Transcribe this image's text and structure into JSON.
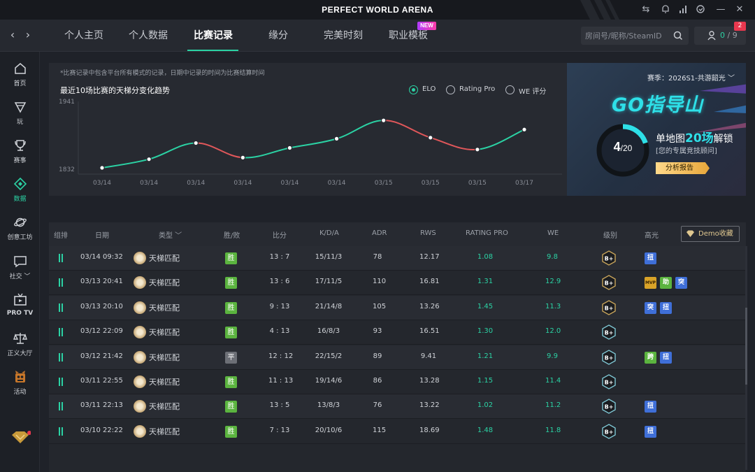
{
  "app": {
    "title": "PERFECT WORLD ARENA",
    "accent": "#2bd2a4"
  },
  "topnav": {
    "tabs": [
      {
        "label": "个人主页",
        "active": false
      },
      {
        "label": "个人数据",
        "active": false
      },
      {
        "label": "比赛记录",
        "active": true
      },
      {
        "label": "缘分",
        "active": false
      },
      {
        "label": "完美时刻",
        "active": false
      },
      {
        "label": "职业模板",
        "active": false
      }
    ],
    "new_badge": "NEW",
    "search_placeholder": "房间号/昵称/SteamID",
    "friends_online": "0",
    "friends_sep": " / ",
    "friends_total": "9",
    "friend_requests": "2"
  },
  "sidebar": {
    "items": [
      {
        "label": "首页",
        "icon": "home-icon"
      },
      {
        "label": "玩",
        "icon": "play-icon"
      },
      {
        "label": "赛事",
        "icon": "trophy-icon"
      },
      {
        "label": "数据",
        "icon": "data-icon",
        "active": true
      },
      {
        "label": "创意工坊",
        "icon": "planet-icon"
      },
      {
        "label": "社交 ﹀",
        "icon": "chat-icon"
      },
      {
        "label": "PRO TV",
        "icon": "tv-icon"
      },
      {
        "label": "正义大厅",
        "icon": "scales-icon"
      },
      {
        "label": "活动",
        "icon": "event-icon"
      }
    ]
  },
  "chart_panel": {
    "note": "*比赛记录中包含平台所有模式的记录，日期中记录的时间为比赛结算时间",
    "title": "最近10场比赛的天梯分变化趋势",
    "options": [
      {
        "label": "ELO",
        "selected": true
      },
      {
        "label": "Rating Pro",
        "selected": false
      },
      {
        "label": "WE 评分",
        "selected": false
      }
    ]
  },
  "chart_data": {
    "type": "line",
    "title": "最近10场比赛的天梯分变化趋势",
    "x": [
      "03/14",
      "03/14",
      "03/14",
      "03/14",
      "03/14",
      "03/14",
      "03/15",
      "03/15",
      "03/15",
      "03/17"
    ],
    "y_tick_labels": [
      "1941",
      "1832"
    ],
    "ylim": [
      1832,
      1941
    ],
    "series": [
      {
        "name": "ELO",
        "values": [
          1832,
          1848,
          1878,
          1851,
          1869,
          1886,
          1920,
          1888,
          1866,
          1903
        ]
      }
    ],
    "colors": {
      "up": "#2bd2a4",
      "down": "#e0575a"
    },
    "grid": false
  },
  "promo": {
    "season": "赛季：2026S1-共游韶光 ﹀",
    "logo_text": "GO指导山",
    "progress_done": "4",
    "progress_total": "/20",
    "progress_fraction": 0.2,
    "line1_prefix": "单地图",
    "line1_highlight": "20场",
    "line1_suffix": "解锁",
    "line2": "[您的专属竞技顾问]",
    "button": "分析报告"
  },
  "table": {
    "headers": {
      "group": "组排",
      "date": "日期",
      "type": "类型 ﹀",
      "result": "胜/败",
      "score": "比分",
      "kda": "K/D/A",
      "adr": "ADR",
      "rws": "RWS",
      "rating": "RATING PRO",
      "we": "WE",
      "rank": "级别",
      "highlight": "高光"
    },
    "demo_button": "Demo收藏",
    "rows": [
      {
        "date": "03/14 09:32",
        "type": "天梯匹配",
        "result": "胜",
        "score": "13 : 7",
        "kda": "15/11/3",
        "adr": "78",
        "rws": "12.17",
        "rating": "1.08",
        "we": "9.8",
        "rank": "B+",
        "highlights": [
          {
            "t": "扭",
            "c": "blue"
          }
        ]
      },
      {
        "date": "03/13 20:41",
        "type": "天梯匹配",
        "result": "胜",
        "score": "13 : 6",
        "kda": "17/11/5",
        "adr": "110",
        "rws": "16.81",
        "rating": "1.31",
        "we": "12.9",
        "rank": "B+",
        "highlights": [
          {
            "t": "MVP",
            "c": "gold"
          },
          {
            "t": "助",
            "c": "green"
          },
          {
            "t": "突",
            "c": "blue"
          }
        ]
      },
      {
        "date": "03/13 20:10",
        "type": "天梯匹配",
        "result": "胜",
        "score": "9 : 13",
        "kda": "21/14/8",
        "adr": "105",
        "rws": "13.26",
        "rating": "1.45",
        "we": "11.3",
        "rank": "B+",
        "highlights": [
          {
            "t": "突",
            "c": "blue"
          },
          {
            "t": "扭",
            "c": "blue"
          }
        ]
      },
      {
        "date": "03/12 22:09",
        "type": "天梯匹配",
        "result": "胜",
        "score": "4 : 13",
        "kda": "16/8/3",
        "adr": "93",
        "rws": "16.51",
        "rating": "1.30",
        "we": "12.0",
        "rank": "B+",
        "highlights": []
      },
      {
        "date": "03/12 21:42",
        "type": "天梯匹配",
        "result": "平",
        "score": "12 : 12",
        "kda": "22/15/2",
        "adr": "89",
        "rws": "9.41",
        "rating": "1.21",
        "we": "9.9",
        "rank": "B+",
        "highlights": [
          {
            "t": "跨",
            "c": "green"
          },
          {
            "t": "扭",
            "c": "blue"
          }
        ]
      },
      {
        "date": "03/11 22:55",
        "type": "天梯匹配",
        "result": "胜",
        "score": "11 : 13",
        "kda": "19/14/6",
        "adr": "86",
        "rws": "13.28",
        "rating": "1.15",
        "we": "11.4",
        "rank": "B+",
        "highlights": []
      },
      {
        "date": "03/11 22:13",
        "type": "天梯匹配",
        "result": "胜",
        "score": "13 : 5",
        "kda": "13/8/3",
        "adr": "76",
        "rws": "13.22",
        "rating": "1.02",
        "we": "11.2",
        "rank": "B+",
        "highlights": [
          {
            "t": "扭",
            "c": "blue"
          }
        ]
      },
      {
        "date": "03/10 22:22",
        "type": "天梯匹配",
        "result": "胜",
        "score": "7 : 13",
        "kda": "20/10/6",
        "adr": "115",
        "rws": "18.69",
        "rating": "1.48",
        "we": "11.8",
        "rank": "B+",
        "highlights": [
          {
            "t": "扭",
            "c": "blue"
          }
        ]
      }
    ]
  }
}
